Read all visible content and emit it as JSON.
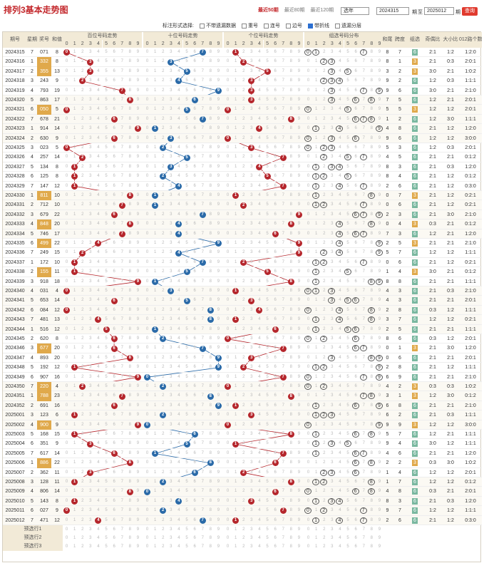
{
  "header": {
    "title": "排列3基本走势图",
    "ranges": [
      "最近50期",
      "最近80期",
      "最近120期"
    ],
    "active_range": 0,
    "mode_select": "选年",
    "from_issue": "2024315",
    "to_label": "至",
    "to_issue": "2025012",
    "issue_unit": "期",
    "query_button": "查询"
  },
  "options": {
    "label": "标注形式选择:",
    "items": [
      {
        "label": "不带遗漏数据",
        "on": false
      },
      {
        "label": "重号",
        "on": false
      },
      {
        "label": "连号",
        "on": false
      },
      {
        "label": "边号",
        "on": false
      },
      {
        "label": "带折线",
        "on": true
      },
      {
        "label": "遗漏分层",
        "on": false
      }
    ]
  },
  "columns": {
    "issue": "期号",
    "week": "星期",
    "prize": "奖号",
    "sum": "和值",
    "group_hundreds": "百位号码走势",
    "group_tens": "十位号码走势",
    "group_units": "个位号码走势",
    "group_dist": "组选号码分布",
    "span_sum": "和尾",
    "span": "跨度",
    "group_type": "组选",
    "odd_even": "奇偶比",
    "big_small": "大小比",
    "r012": "012路个数比"
  },
  "digits": [
    "0",
    "1",
    "2",
    "3",
    "4",
    "5",
    "6",
    "7",
    "8",
    "9"
  ],
  "colors": {
    "hundreds": "#b5262c",
    "tens": "#2a6aa8",
    "units": "#b5262c",
    "header_bg": "#f2ead7",
    "accent": "#c3272b"
  },
  "chart_data": {
    "type": "table",
    "title": "排列3基本走势图",
    "rows": [
      {
        "issue": "2024315",
        "week": "7",
        "prize": "071",
        "sum": "8"
      },
      {
        "issue": "2024316",
        "week": "1",
        "prize": "332",
        "sum": "8"
      },
      {
        "issue": "2024317",
        "week": "2",
        "prize": "355",
        "sum": "13"
      },
      {
        "issue": "2024318",
        "week": "3",
        "prize": "243",
        "sum": "9"
      },
      {
        "issue": "2024319",
        "week": "4",
        "prize": "793",
        "sum": "19"
      },
      {
        "issue": "2024320",
        "week": "5",
        "prize": "863",
        "sum": "17"
      },
      {
        "issue": "2024321",
        "week": "6",
        "prize": "050",
        "sum": "5"
      },
      {
        "issue": "2024322",
        "week": "7",
        "prize": "678",
        "sum": "21"
      },
      {
        "issue": "2024323",
        "week": "1",
        "prize": "914",
        "sum": "14"
      },
      {
        "issue": "2024324",
        "week": "2",
        "prize": "630",
        "sum": "9"
      },
      {
        "issue": "2024325",
        "week": "3",
        "prize": "023",
        "sum": "5"
      },
      {
        "issue": "2024326",
        "week": "4",
        "prize": "257",
        "sum": "14"
      },
      {
        "issue": "2024327",
        "week": "5",
        "prize": "134",
        "sum": "8"
      },
      {
        "issue": "2024328",
        "week": "6",
        "prize": "125",
        "sum": "8"
      },
      {
        "issue": "2024329",
        "week": "7",
        "prize": "147",
        "sum": "12"
      },
      {
        "issue": "2024330",
        "week": "1",
        "prize": "811",
        "sum": "10"
      },
      {
        "issue": "2024331",
        "week": "2",
        "prize": "712",
        "sum": "10"
      },
      {
        "issue": "2024332",
        "week": "3",
        "prize": "679",
        "sum": "22"
      },
      {
        "issue": "2024333",
        "week": "4",
        "prize": "848",
        "sum": "20"
      },
      {
        "issue": "2024334",
        "week": "5",
        "prize": "746",
        "sum": "17"
      },
      {
        "issue": "2024335",
        "week": "6",
        "prize": "499",
        "sum": "22"
      },
      {
        "issue": "2024336",
        "week": "7",
        "prize": "249",
        "sum": "15"
      },
      {
        "issue": "2024337",
        "week": "1",
        "prize": "172",
        "sum": "10"
      },
      {
        "issue": "2024338",
        "week": "2",
        "prize": "155",
        "sum": "11"
      },
      {
        "issue": "2024339",
        "week": "3",
        "prize": "918",
        "sum": "18"
      },
      {
        "issue": "2024340",
        "week": "4",
        "prize": "031",
        "sum": "4"
      },
      {
        "issue": "2024341",
        "week": "5",
        "prize": "653",
        "sum": "14"
      },
      {
        "issue": "2024342",
        "week": "6",
        "prize": "084",
        "sum": "12"
      },
      {
        "issue": "2024343",
        "week": "7",
        "prize": "481",
        "sum": "13"
      },
      {
        "issue": "2024344",
        "week": "1",
        "prize": "516",
        "sum": "12"
      },
      {
        "issue": "2024345",
        "week": "2",
        "prize": "620",
        "sum": "8"
      },
      {
        "issue": "2024346",
        "week": "3",
        "prize": "677",
        "sum": "20"
      },
      {
        "issue": "2024347",
        "week": "4",
        "prize": "893",
        "sum": "20"
      },
      {
        "issue": "2024348",
        "week": "5",
        "prize": "192",
        "sum": "12"
      },
      {
        "issue": "2024349",
        "week": "6",
        "prize": "907",
        "sum": "16"
      },
      {
        "issue": "2024350",
        "week": "7",
        "prize": "220",
        "sum": "4"
      },
      {
        "issue": "2024351",
        "week": "1",
        "prize": "788",
        "sum": "23"
      },
      {
        "issue": "2024352",
        "week": "2",
        "prize": "691",
        "sum": "16"
      },
      {
        "issue": "2025001",
        "week": "3",
        "prize": "123",
        "sum": "6"
      },
      {
        "issue": "2025002",
        "week": "4",
        "prize": "900",
        "sum": "9"
      },
      {
        "issue": "2025003",
        "week": "5",
        "prize": "168",
        "sum": "15"
      },
      {
        "issue": "2025004",
        "week": "6",
        "prize": "351",
        "sum": "9"
      },
      {
        "issue": "2025005",
        "week": "7",
        "prize": "617",
        "sum": "14"
      },
      {
        "issue": "2025006",
        "week": "1",
        "prize": "886",
        "sum": "22"
      },
      {
        "issue": "2025007",
        "week": "2",
        "prize": "362",
        "sum": "11"
      },
      {
        "issue": "2025008",
        "week": "3",
        "prize": "128",
        "sum": "11"
      },
      {
        "issue": "2025009",
        "week": "4",
        "prize": "806",
        "sum": "14"
      },
      {
        "issue": "2025010",
        "week": "5",
        "prize": "143",
        "sum": "8"
      },
      {
        "issue": "2025011",
        "week": "6",
        "prize": "027",
        "sum": "9"
      },
      {
        "issue": "2025012",
        "week": "7",
        "prize": "471",
        "sum": "12"
      }
    ]
  },
  "footer": [
    "预选行1",
    "预选行2",
    "预选行3"
  ]
}
